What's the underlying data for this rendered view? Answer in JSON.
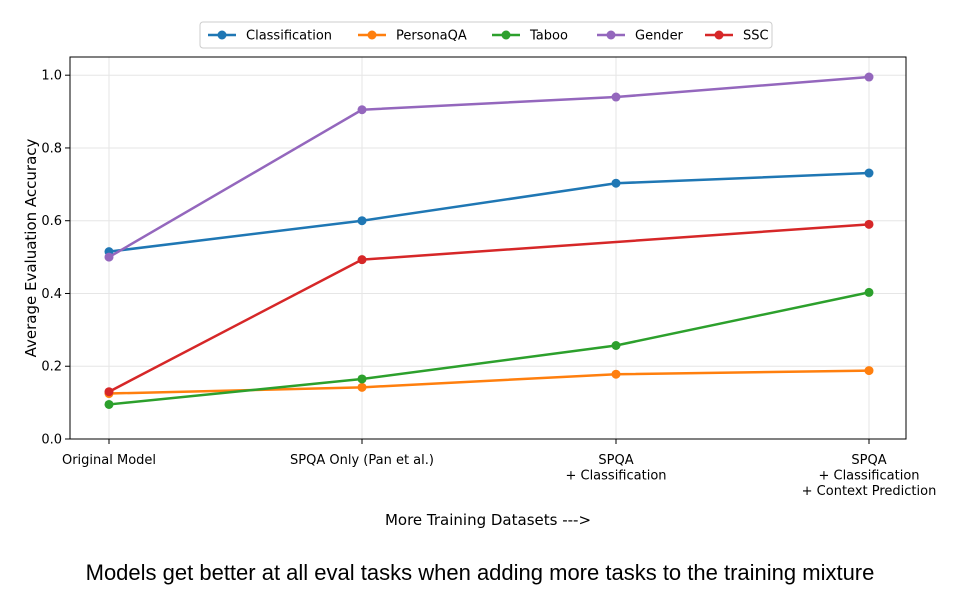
{
  "chart_data": {
    "type": "line",
    "title": "",
    "xlabel": "More Training Datasets --->",
    "ylabel": "Average Evaluation Accuracy",
    "ylim": [
      0.0,
      1.05
    ],
    "yticks": [
      "0.0",
      "0.2",
      "0.4",
      "0.6",
      "0.8",
      "1.0"
    ],
    "categories": [
      [
        "Original Model"
      ],
      [
        "SPQA Only (Pan et al.)"
      ],
      [
        "SPQA",
        "+ Classification"
      ],
      [
        "SPQA",
        "+ Classification",
        "+ Context Prediction"
      ]
    ],
    "grid": true,
    "legend_position": "top",
    "series": [
      {
        "name": "Classification",
        "color": "#1f77b4",
        "values": [
          0.515,
          0.6,
          0.703,
          0.731
        ]
      },
      {
        "name": "PersonaQA",
        "color": "#ff7f0e",
        "values": [
          0.125,
          0.142,
          0.178,
          0.188
        ]
      },
      {
        "name": "Taboo",
        "color": "#2ca02c",
        "values": [
          0.095,
          0.165,
          0.257,
          0.403
        ]
      },
      {
        "name": "Gender",
        "color": "#9467bd",
        "values": [
          0.5,
          0.905,
          0.94,
          0.995
        ]
      },
      {
        "name": "SSC",
        "color": "#d62728",
        "values": [
          0.13,
          0.493,
          null,
          0.59
        ]
      }
    ]
  },
  "caption": "Models get better at all eval tasks when adding more tasks to the training mixture"
}
